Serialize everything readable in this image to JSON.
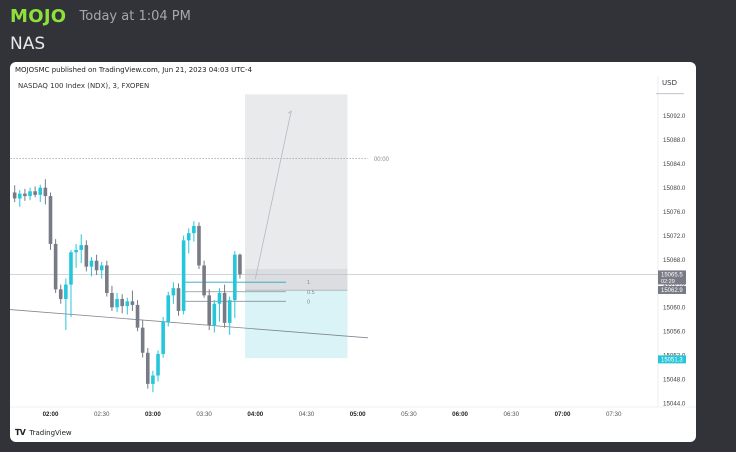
{
  "message": {
    "author": "MOJO",
    "timestamp": "Today at 1:04 PM",
    "text": "NAS"
  },
  "chart_header": {
    "published": "MOJOSMC published on TradingView.com, Jun 21, 2023 04:03 UTC-4",
    "symbol": "NASDAQ 100 Index (NDX), 3, FXOPEN",
    "currency": "USD"
  },
  "footer": {
    "brand": "TradingView",
    "logo_icon": "tradingview-logo-icon"
  },
  "colors": {
    "up": "#26c6da",
    "down": "#787b86",
    "sell_zone": "#e9eaec",
    "buy_zone": "#d9f3f7",
    "last_price": "#787b86",
    "target_price": "#26c6da"
  },
  "chart_data": {
    "type": "candlestick",
    "price_ticks": [
      15092.0,
      15088.0,
      15084.0,
      15080.0,
      15076.0,
      15072.0,
      15068.0,
      15064.0,
      15060.0,
      15056.0,
      15052.0,
      15048.0,
      15044.0
    ],
    "ylim": [
      15043.0,
      15096.5
    ],
    "time_ticks": [
      {
        "label": "02:00",
        "t": 0,
        "bold": true
      },
      {
        "label": "02:30",
        "t": 10,
        "bold": false
      },
      {
        "label": "03:00",
        "t": 20,
        "bold": true
      },
      {
        "label": "03:30",
        "t": 30,
        "bold": false
      },
      {
        "label": "04:00",
        "t": 40,
        "bold": true
      },
      {
        "label": "04:30",
        "t": 50,
        "bold": false
      },
      {
        "label": "05:00",
        "t": 60,
        "bold": true
      },
      {
        "label": "05:30",
        "t": 70,
        "bold": false
      },
      {
        "label": "06:00",
        "t": 80,
        "bold": true
      },
      {
        "label": "06:30",
        "t": 90,
        "bold": false
      },
      {
        "label": "07:00",
        "t": 100,
        "bold": true
      },
      {
        "label": "07:30",
        "t": 110,
        "bold": false
      }
    ],
    "candles": [
      [
        -7,
        15079.2,
        15080.4,
        15077.6,
        15078.2
      ],
      [
        -6,
        15078.2,
        15079.6,
        15076.8,
        15079.0
      ],
      [
        -5,
        15079.0,
        15079.8,
        15077.8,
        15078.6
      ],
      [
        -4,
        15078.6,
        15080.0,
        15077.9,
        15079.4
      ],
      [
        -3,
        15079.4,
        15080.2,
        15078.4,
        15078.8
      ],
      [
        -2,
        15078.8,
        15080.5,
        15077.6,
        15080.0
      ],
      [
        -1,
        15080.0,
        15081.4,
        15077.2,
        15078.6
      ],
      [
        0,
        15078.6,
        15079.2,
        15069.6,
        15070.6
      ],
      [
        1,
        15070.6,
        15071.4,
        15062.4,
        15063.0
      ],
      [
        2,
        15063.0,
        15063.8,
        15060.6,
        15061.4
      ],
      [
        3,
        15061.4,
        15064.8,
        15056.2,
        15063.8
      ],
      [
        4,
        15063.8,
        15069.6,
        15058.4,
        15069.2
      ],
      [
        5,
        15069.2,
        15070.6,
        15066.6,
        15069.6
      ],
      [
        6,
        15069.6,
        15072.2,
        15067.4,
        15070.4
      ],
      [
        7,
        15070.4,
        15071.2,
        15066.0,
        15066.8
      ],
      [
        8,
        15066.8,
        15068.4,
        15065.2,
        15067.8
      ],
      [
        9,
        15067.8,
        15068.8,
        15065.4,
        15066.2
      ],
      [
        10,
        15066.2,
        15067.6,
        15064.8,
        15067.0
      ],
      [
        11,
        15067.0,
        15067.8,
        15061.8,
        15062.4
      ],
      [
        12,
        15062.4,
        15063.6,
        15059.4,
        15060.0
      ],
      [
        13,
        15060.0,
        15062.4,
        15059.2,
        15061.4
      ],
      [
        14,
        15061.4,
        15062.2,
        15059.0,
        15060.2
      ],
      [
        15,
        15060.2,
        15061.6,
        15058.8,
        15061.0
      ],
      [
        16,
        15061.0,
        15062.8,
        15059.4,
        15060.4
      ],
      [
        17,
        15060.4,
        15061.2,
        15056.0,
        15056.6
      ],
      [
        18,
        15056.6,
        15057.8,
        15051.6,
        15052.4
      ],
      [
        19,
        15052.4,
        15053.2,
        15046.4,
        15047.2
      ],
      [
        20,
        15047.2,
        15049.4,
        15045.8,
        15048.6
      ],
      [
        21,
        15048.6,
        15052.8,
        15047.6,
        15052.2
      ],
      [
        22,
        15052.2,
        15058.4,
        15051.6,
        15057.6
      ],
      [
        23,
        15057.6,
        15062.6,
        15056.8,
        15062.0
      ],
      [
        24,
        15062.0,
        15064.2,
        15060.6,
        15063.2
      ],
      [
        25,
        15063.2,
        15064.0,
        15058.6,
        15059.4
      ],
      [
        26,
        15059.4,
        15072.0,
        15058.8,
        15071.2
      ],
      [
        27,
        15071.2,
        15073.2,
        15069.0,
        15072.4
      ],
      [
        28,
        15072.4,
        15074.4,
        15071.0,
        15073.6
      ],
      [
        29,
        15073.6,
        15074.2,
        15066.4,
        15067.0
      ],
      [
        30,
        15067.0,
        15067.8,
        15061.6,
        15062.0
      ],
      [
        31,
        15062.0,
        15063.0,
        15056.2,
        15057.0
      ],
      [
        32,
        15057.0,
        15061.2,
        15055.8,
        15060.6
      ],
      [
        33,
        15060.6,
        15063.2,
        15057.6,
        15062.4
      ],
      [
        34,
        15062.4,
        15063.8,
        15056.6,
        15057.4
      ],
      [
        35,
        15057.4,
        15061.8,
        15055.4,
        15061.2
      ],
      [
        36,
        15061.2,
        15069.4,
        15058.2,
        15068.8
      ],
      [
        37,
        15068.8,
        15069.0,
        15064.8,
        15065.5
      ]
    ],
    "trend_lines": [
      {
        "from": [
          -9,
          15059.7
        ],
        "to": [
          62,
          15054.9
        ]
      }
    ],
    "dotted_levels": [
      {
        "price": 15084.9,
        "t0": -9,
        "t1": 62,
        "label": "00:00"
      }
    ],
    "fib": {
      "t0": 26,
      "t1": 46,
      "levels": [
        {
          "label": "1",
          "price": 15064.2
        },
        {
          "label": "0.5",
          "price": 15062.6
        },
        {
          "label": "0",
          "price": 15061.0
        }
      ]
    },
    "position_tool": {
      "t0": 38,
      "t1": 58,
      "entry": 15062.9,
      "upper": 15095.6,
      "lower": 15051.5,
      "target": 15051.3
    },
    "projection": {
      "from": [
        40,
        15064.7
      ],
      "to": [
        47,
        15092.8
      ]
    },
    "price_labels": [
      {
        "label": "15065.5",
        "sub": "02:29",
        "price": 15065.5,
        "color": "#787b86"
      },
      {
        "label": "15062.9",
        "sub": "",
        "price": 15062.9,
        "color": "#787b86"
      },
      {
        "label": "15051.3",
        "sub": "",
        "price": 15051.3,
        "color": "#26c6da"
      }
    ],
    "grid": false
  }
}
